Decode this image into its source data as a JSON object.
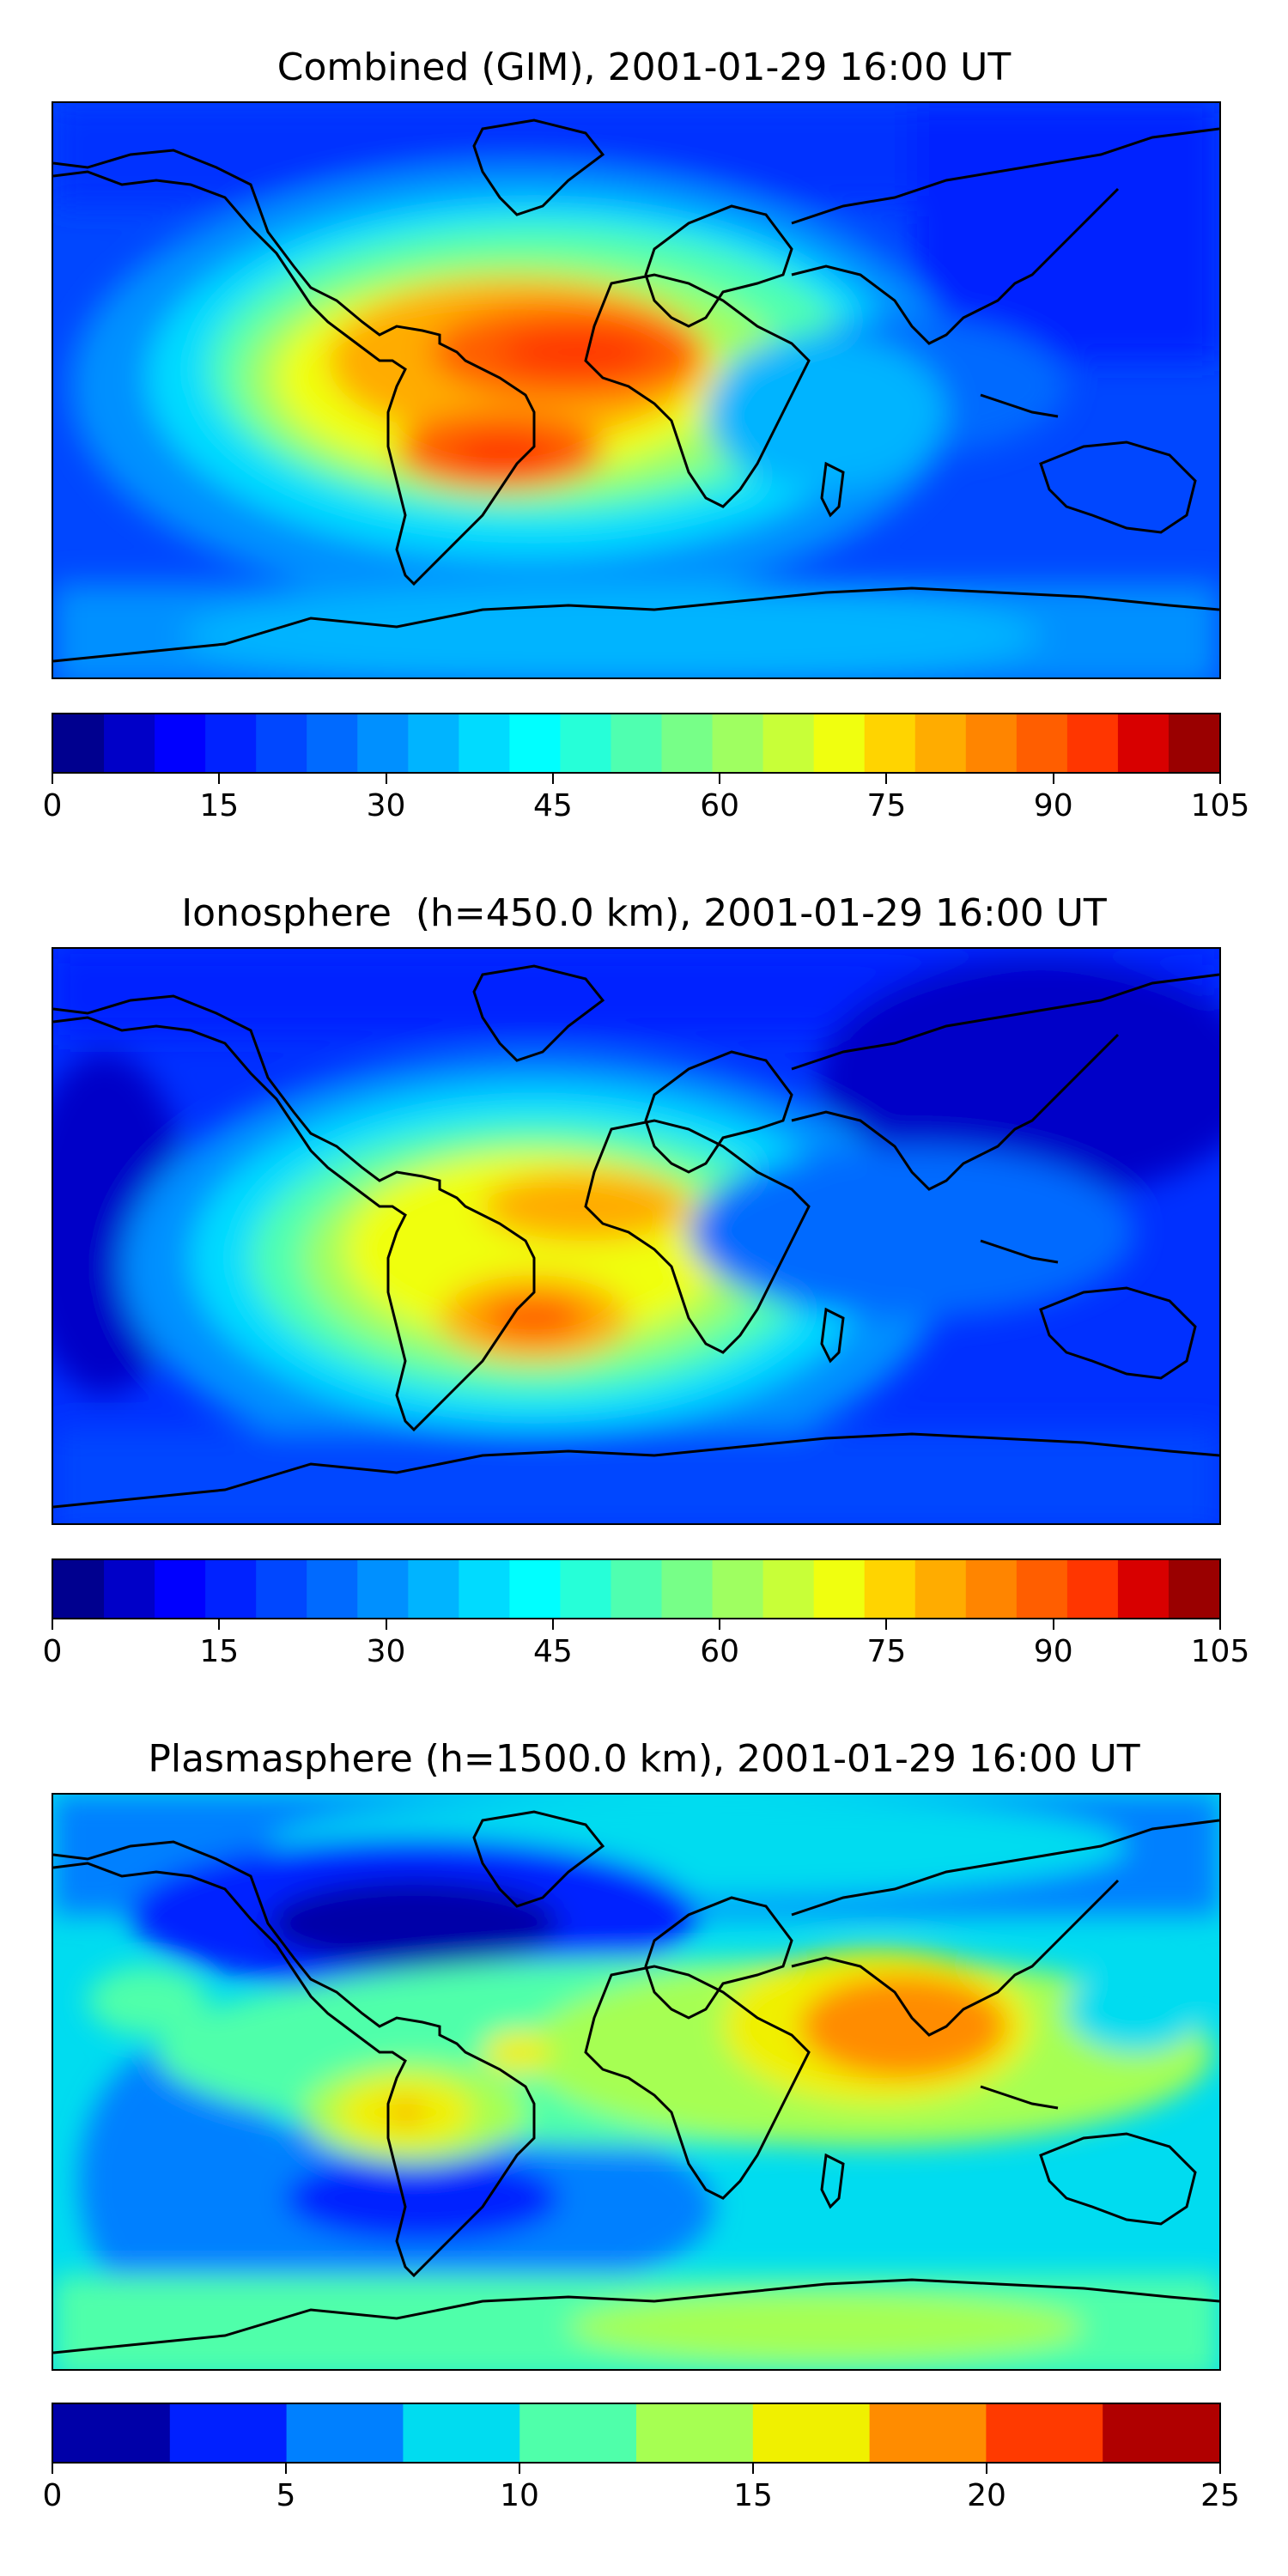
{
  "panels": [
    {
      "title": "Combined (GIM), 2001-01-29 16:00 UT",
      "colorbar": {
        "min": 0,
        "max": 105,
        "levels": 21,
        "ticks": [
          "0",
          "15",
          "30",
          "45",
          "60",
          "75",
          "90",
          "105"
        ],
        "colors": [
          "#00008f",
          "#0000c8",
          "#0000ff",
          "#0022ff",
          "#0047ff",
          "#006aff",
          "#0090ff",
          "#00b4ff",
          "#00dbff",
          "#00ffff",
          "#26ffd8",
          "#4fffb0",
          "#77ff88",
          "#9fff61",
          "#c8ff38",
          "#f0ff0f",
          "#ffd400",
          "#ffac00",
          "#ff8500",
          "#ff5e00",
          "#ff3600",
          "#d80000",
          "#9a0000"
        ]
      }
    },
    {
      "title": "Ionosphere  (h=450.0 km), 2001-01-29 16:00 UT",
      "colorbar": {
        "min": 0,
        "max": 105,
        "levels": 21,
        "ticks": [
          "0",
          "15",
          "30",
          "45",
          "60",
          "75",
          "90",
          "105"
        ],
        "colors": [
          "#00008f",
          "#0000c8",
          "#0000ff",
          "#0022ff",
          "#0047ff",
          "#006aff",
          "#0090ff",
          "#00b4ff",
          "#00dbff",
          "#00ffff",
          "#26ffd8",
          "#4fffb0",
          "#77ff88",
          "#9fff61",
          "#c8ff38",
          "#f0ff0f",
          "#ffd400",
          "#ffac00",
          "#ff8500",
          "#ff5e00",
          "#ff3600",
          "#d80000",
          "#9a0000"
        ]
      }
    },
    {
      "title": "Plasmasphere (h=1500.0 km), 2001-01-29 16:00 UT",
      "colorbar": {
        "min": 0,
        "max": 25,
        "levels": 10,
        "ticks": [
          "0",
          "5",
          "10",
          "15",
          "20",
          "25"
        ],
        "colors": [
          "#0000a8",
          "#0020ff",
          "#0080ff",
          "#00dcf0",
          "#4fffaa",
          "#a6ff52",
          "#f0f000",
          "#ff8c00",
          "#ff3a00",
          "#b00000"
        ]
      }
    }
  ]
}
